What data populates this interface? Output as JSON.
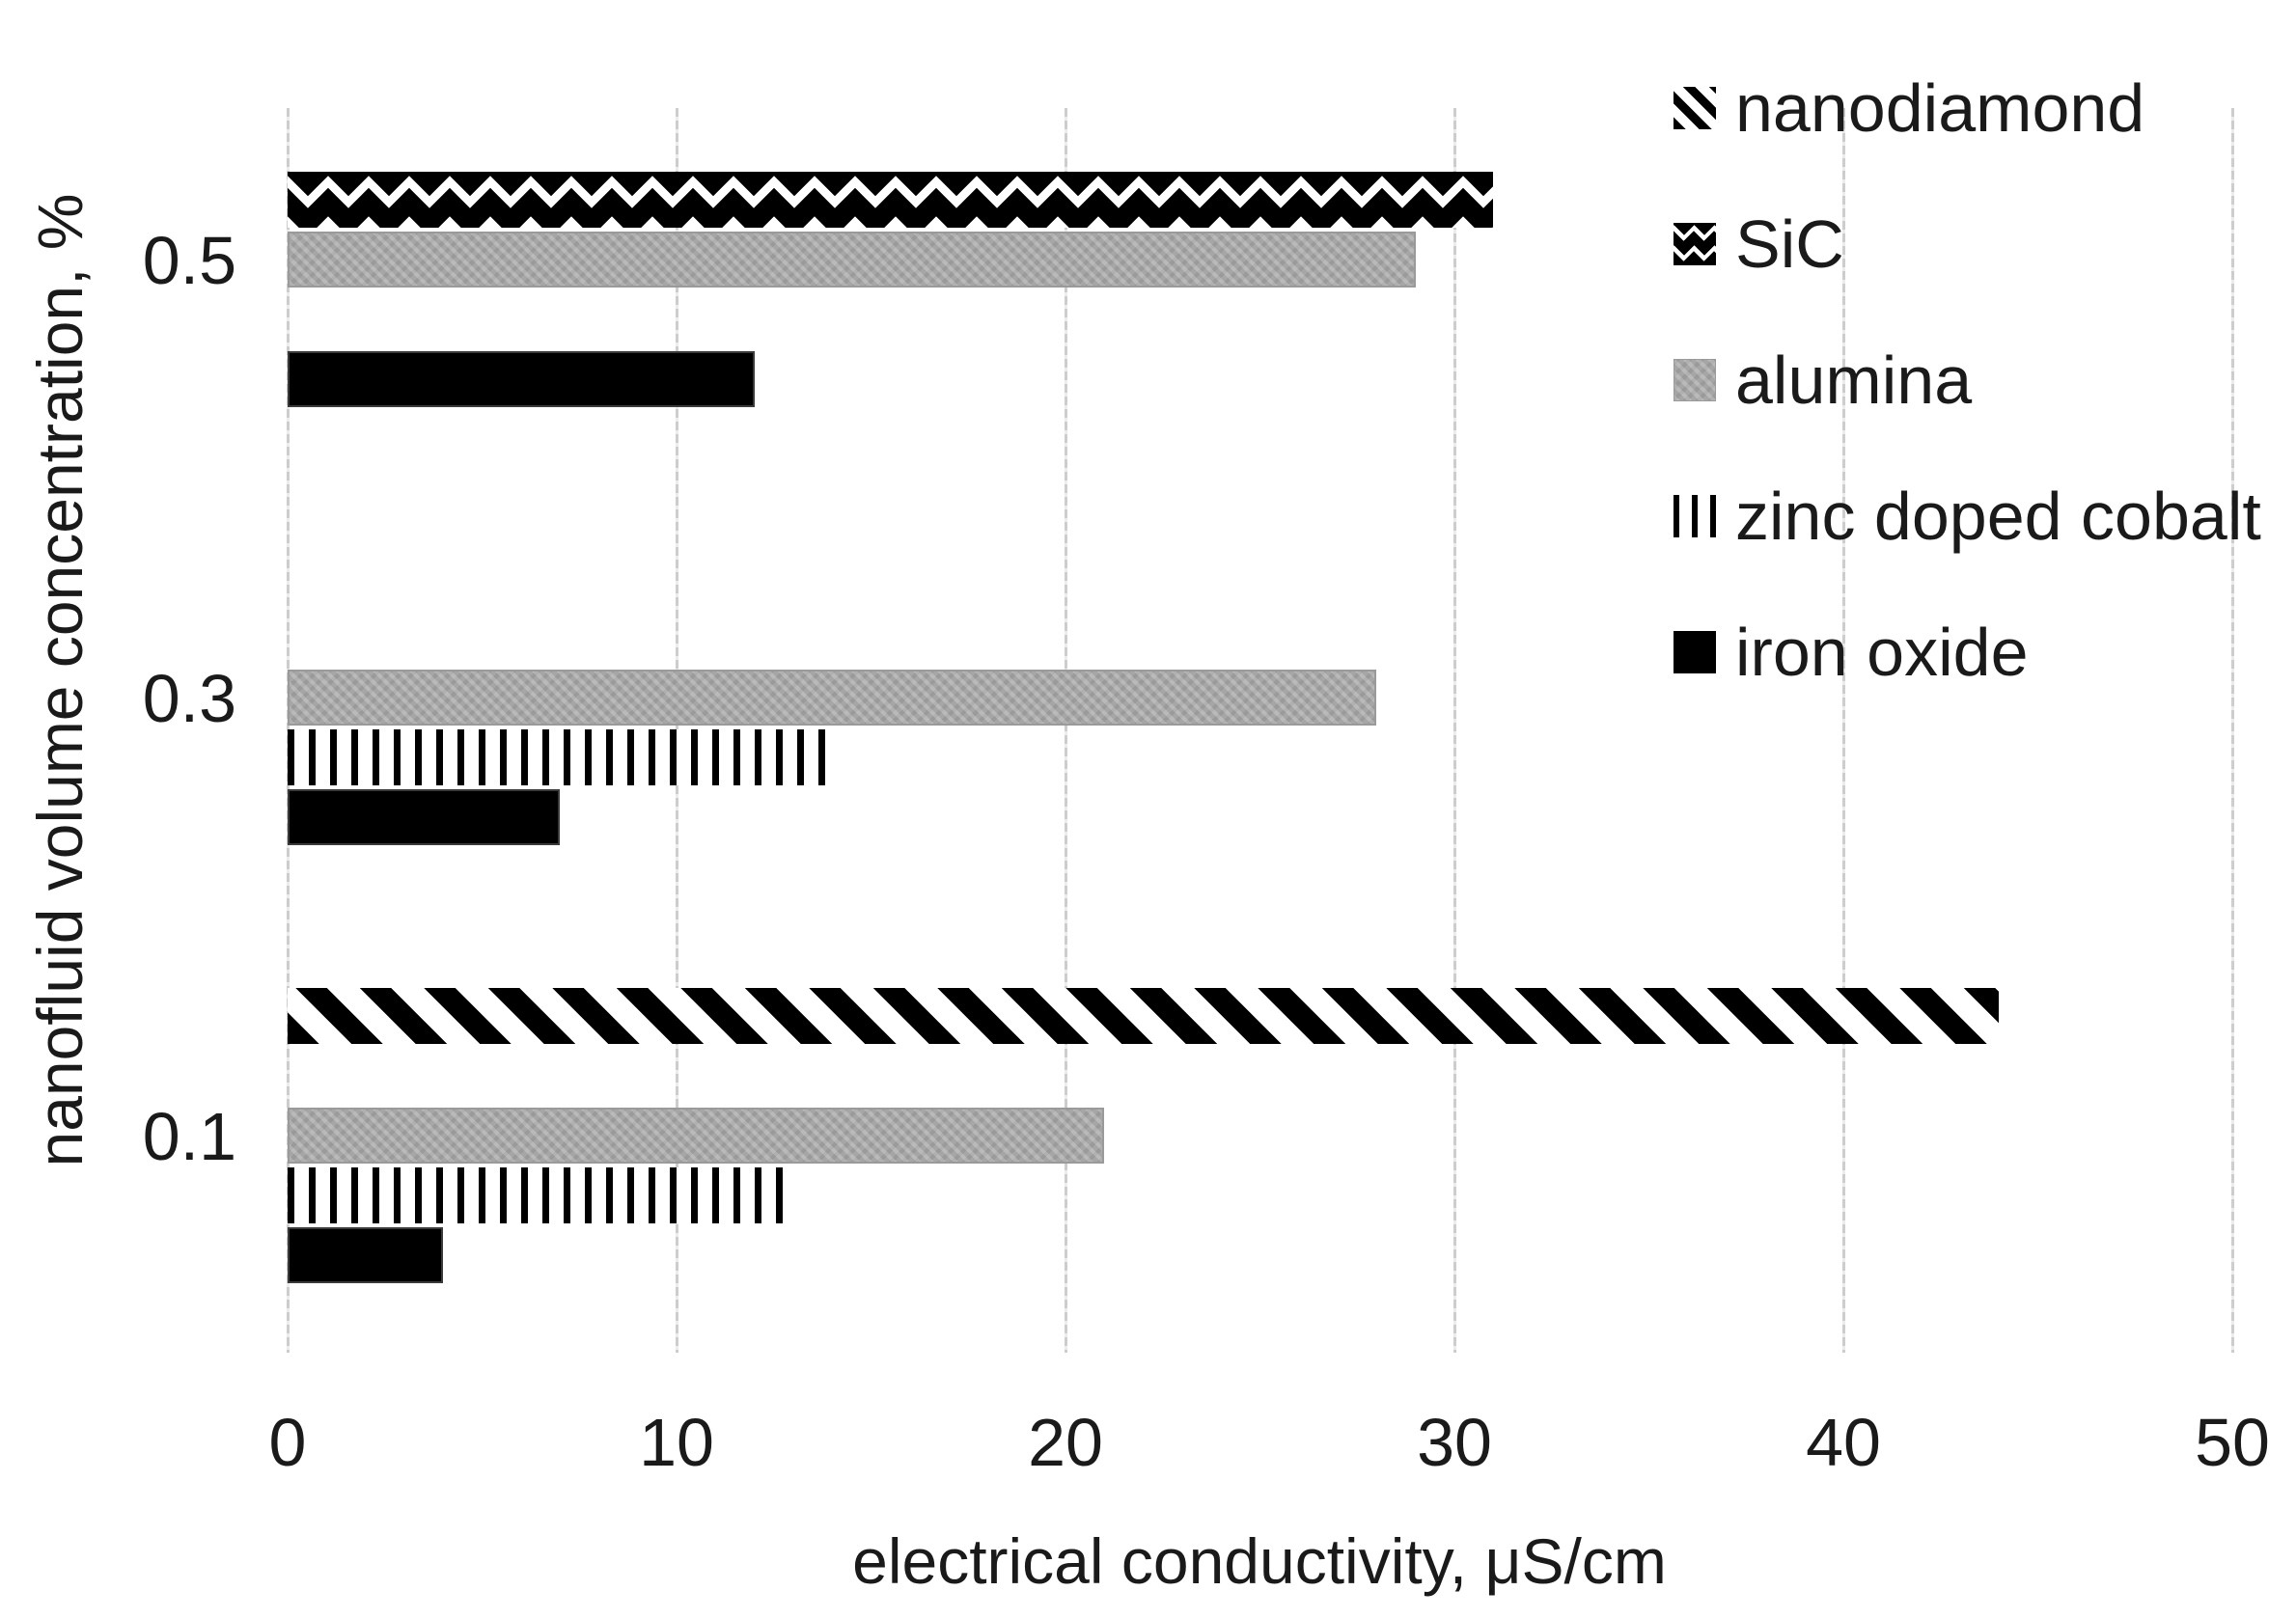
{
  "chart_data": {
    "type": "bar",
    "orientation": "horizontal",
    "xlabel": "electrical conductivity, μS/cm",
    "ylabel": "nanofluid volume concentration, %",
    "categories": [
      "0.5",
      "0.3",
      "0.1"
    ],
    "x_ticks": [
      0,
      10,
      20,
      30,
      40,
      50
    ],
    "xlim": [
      0,
      50
    ],
    "grid": true,
    "legend_position": "top-right",
    "series": [
      {
        "name": "nanodiamond",
        "pattern": "diagonal-stripes",
        "color": "#000000",
        "values": [
          null,
          null,
          44
        ]
      },
      {
        "name": "SiC",
        "pattern": "diamond-check",
        "color": "#000000",
        "values": [
          31,
          null,
          null
        ]
      },
      {
        "name": "alumina",
        "pattern": "solid-gray",
        "color": "#a6a6a6",
        "values": [
          29,
          28,
          21
        ]
      },
      {
        "name": "zinc doped cobalt",
        "pattern": "vertical-stripes",
        "color": "#000000",
        "values": [
          null,
          14,
          13
        ]
      },
      {
        "name": "iron oxide",
        "pattern": "solid-black",
        "color": "#000000",
        "values": [
          12,
          7,
          4
        ]
      }
    ]
  },
  "colors": {
    "background": "#ffffff",
    "gridline": "#d4d4d4",
    "text": "#1a1a1a",
    "bar_gray": "#a6a6a6",
    "bar_black": "#000000"
  }
}
